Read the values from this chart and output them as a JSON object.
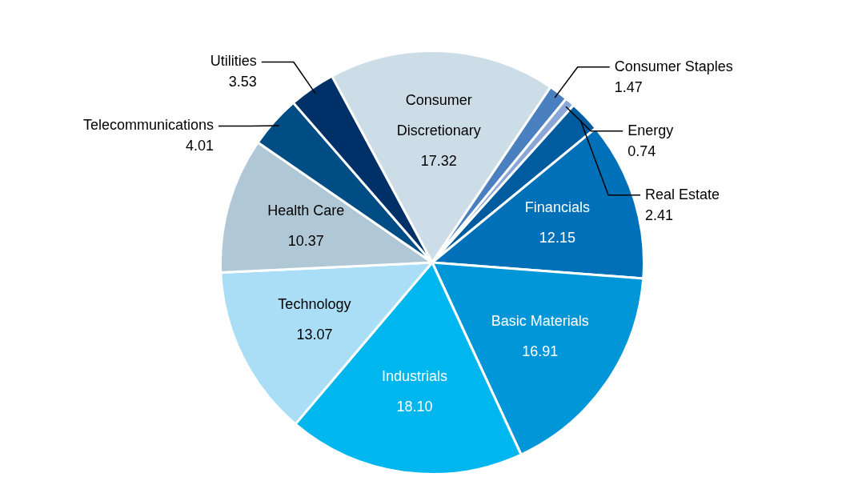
{
  "chart_data": {
    "type": "pie",
    "categories": [
      "Consumer Discretionary",
      "Consumer Staples",
      "Energy",
      "Real Estate",
      "Financials",
      "Basic Materials",
      "Industrials",
      "Technology",
      "Health Care",
      "Telecommunications",
      "Utilities"
    ],
    "values": [
      17.32,
      1.47,
      0.74,
      2.41,
      12.15,
      16.91,
      18.1,
      13.07,
      10.37,
      4.01,
      3.53
    ],
    "value_labels": [
      "17.32",
      "1.47",
      "0.74",
      "2.41",
      "12.15",
      "16.91",
      "18.10",
      "13.07",
      "10.37",
      "4.01",
      "3.53"
    ],
    "colors": [
      "#cddde8",
      "#4a7fc0",
      "#8aa6d6",
      "#005c9e",
      "#0070b8",
      "#0096d8",
      "#00b6ee",
      "#a9def6",
      "#b0c8d6",
      "#004c84",
      "#003068"
    ],
    "legend": false
  }
}
